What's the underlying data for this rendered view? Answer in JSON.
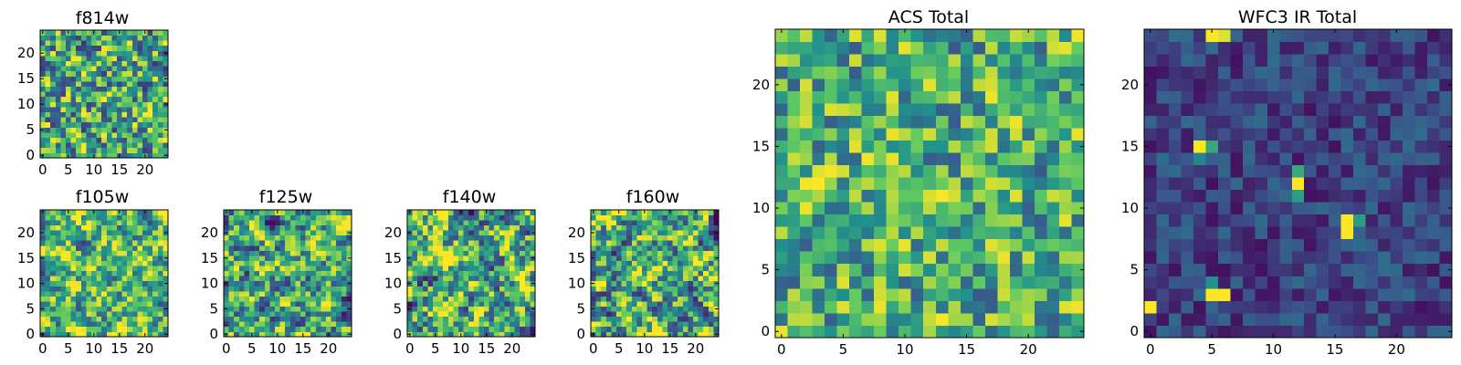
{
  "figure": {
    "colormap": "viridis",
    "colormap_stops": [
      "#440154",
      "#3b528b",
      "#21918c",
      "#5ec962",
      "#fde725"
    ]
  },
  "chart_data": [
    {
      "id": "f814w",
      "type": "heatmap",
      "title": "f814w",
      "grid_size": 25,
      "xlim": [
        0,
        24
      ],
      "ylim": [
        0,
        24
      ],
      "xticks": [
        0,
        5,
        10,
        15,
        20
      ],
      "yticks": [
        0,
        5,
        10,
        15,
        20
      ],
      "value_range": [
        0,
        1
      ],
      "seed": 11,
      "mean": 0.58,
      "spread": 0.24,
      "smooth": 0.15,
      "hotspots": []
    },
    {
      "id": "f105w",
      "type": "heatmap",
      "title": "f105w",
      "grid_size": 25,
      "xlim": [
        0,
        24
      ],
      "ylim": [
        0,
        24
      ],
      "xticks": [
        0,
        5,
        10,
        15,
        20
      ],
      "yticks": [
        0,
        5,
        10,
        15,
        20
      ],
      "value_range": [
        0,
        1
      ],
      "seed": 23,
      "mean": 0.66,
      "spread": 0.22,
      "smooth": 0.55,
      "hotspots": []
    },
    {
      "id": "f125w",
      "type": "heatmap",
      "title": "f125w",
      "grid_size": 25,
      "xlim": [
        0,
        24
      ],
      "ylim": [
        0,
        24
      ],
      "xticks": [
        0,
        5,
        10,
        15,
        20
      ],
      "yticks": [
        0,
        5,
        10,
        15,
        20
      ],
      "value_range": [
        0,
        1
      ],
      "seed": 37,
      "mean": 0.6,
      "spread": 0.24,
      "smooth": 0.55,
      "hotspots": []
    },
    {
      "id": "f140w",
      "type": "heatmap",
      "title": "f140w",
      "grid_size": 25,
      "xlim": [
        0,
        24
      ],
      "ylim": [
        0,
        24
      ],
      "xticks": [
        0,
        5,
        10,
        15,
        20
      ],
      "yticks": [
        0,
        5,
        10,
        15,
        20
      ],
      "value_range": [
        0,
        1
      ],
      "seed": 41,
      "mean": 0.62,
      "spread": 0.26,
      "smooth": 0.55,
      "hotspots": []
    },
    {
      "id": "f160w",
      "type": "heatmap",
      "title": "f160w",
      "grid_size": 25,
      "xlim": [
        0,
        24
      ],
      "ylim": [
        0,
        24
      ],
      "xticks": [
        0,
        5,
        10,
        15,
        20
      ],
      "yticks": [
        0,
        5,
        10,
        15,
        20
      ],
      "value_range": [
        0,
        1
      ],
      "seed": 53,
      "mean": 0.6,
      "spread": 0.26,
      "smooth": 0.55,
      "hotspots": []
    },
    {
      "id": "acs_total",
      "type": "heatmap",
      "title": "ACS Total",
      "grid_size": 25,
      "xlim": [
        0,
        24
      ],
      "ylim": [
        0,
        24
      ],
      "xticks": [
        0,
        5,
        10,
        15,
        20
      ],
      "yticks": [
        0,
        5,
        10,
        15,
        20
      ],
      "value_range": [
        0,
        1
      ],
      "seed": 67,
      "mean": 0.64,
      "spread": 0.2,
      "smooth": 0.2,
      "hotspots": []
    },
    {
      "id": "wfc3_ir_total",
      "type": "heatmap",
      "title": "WFC3 IR Total",
      "grid_size": 25,
      "xlim": [
        0,
        24
      ],
      "ylim": [
        0,
        24
      ],
      "xticks": [
        0,
        5,
        10,
        15,
        20
      ],
      "yticks": [
        0,
        5,
        10,
        15,
        20
      ],
      "value_range": [
        0,
        1
      ],
      "seed": 79,
      "mean": 0.2,
      "spread": 0.09,
      "smooth": 0.1,
      "hotspots": [
        {
          "x": 5,
          "y": 24,
          "value": 1.0
        },
        {
          "x": 6,
          "y": 24,
          "value": 0.95
        },
        {
          "x": 4,
          "y": 15,
          "value": 1.0
        },
        {
          "x": 5,
          "y": 15,
          "value": 0.6
        },
        {
          "x": 4,
          "y": 14,
          "value": 0.45
        },
        {
          "x": 12,
          "y": 12,
          "value": 1.0
        },
        {
          "x": 12,
          "y": 13,
          "value": 0.6
        },
        {
          "x": 12,
          "y": 11,
          "value": 0.55
        },
        {
          "x": 16,
          "y": 9,
          "value": 1.0
        },
        {
          "x": 16,
          "y": 8,
          "value": 1.0
        },
        {
          "x": 17,
          "y": 9,
          "value": 0.55
        },
        {
          "x": 5,
          "y": 3,
          "value": 1.0
        },
        {
          "x": 6,
          "y": 3,
          "value": 1.0
        },
        {
          "x": 5,
          "y": 4,
          "value": 0.5
        },
        {
          "x": 0,
          "y": 2,
          "value": 1.0
        }
      ]
    }
  ]
}
